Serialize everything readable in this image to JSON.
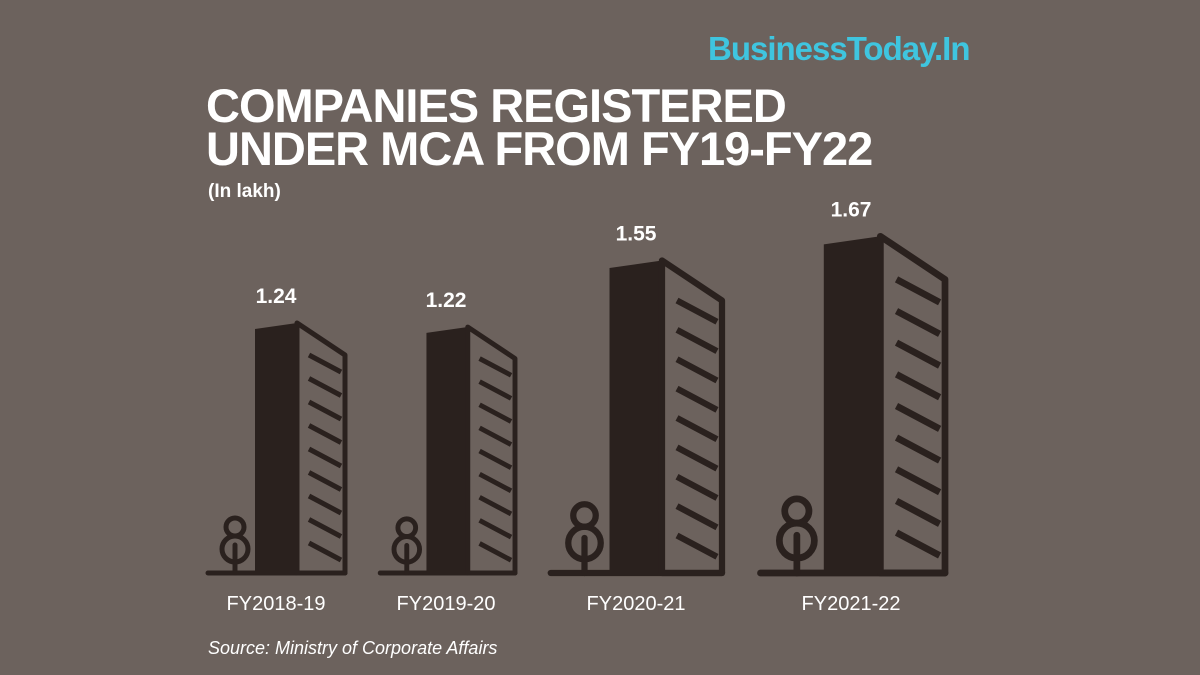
{
  "brand": "BusinessToday.In",
  "title_line1": "COMPANIES REGISTERED",
  "title_line2": "UNDER MCA FROM FY19-FY22",
  "subtitle": "(In lakh)",
  "source": "Source: Ministry of Corporate Affairs",
  "colors": {
    "background": "#6c625d",
    "building": "#2a211e",
    "brand": "#3fc5df",
    "text": "#ffffff"
  },
  "chart_data": {
    "type": "bar",
    "mark": "building-icon",
    "title": "COMPANIES REGISTERED UNDER MCA FROM FY19-FY22",
    "ylabel": "(In lakh)",
    "categories": [
      "FY2018-19",
      "FY2019-20",
      "FY2020-21",
      "FY2021-22"
    ],
    "values": [
      1.24,
      1.22,
      1.55,
      1.67
    ],
    "value_labels": [
      "1.24",
      "1.22",
      "1.55",
      "1.67"
    ]
  }
}
